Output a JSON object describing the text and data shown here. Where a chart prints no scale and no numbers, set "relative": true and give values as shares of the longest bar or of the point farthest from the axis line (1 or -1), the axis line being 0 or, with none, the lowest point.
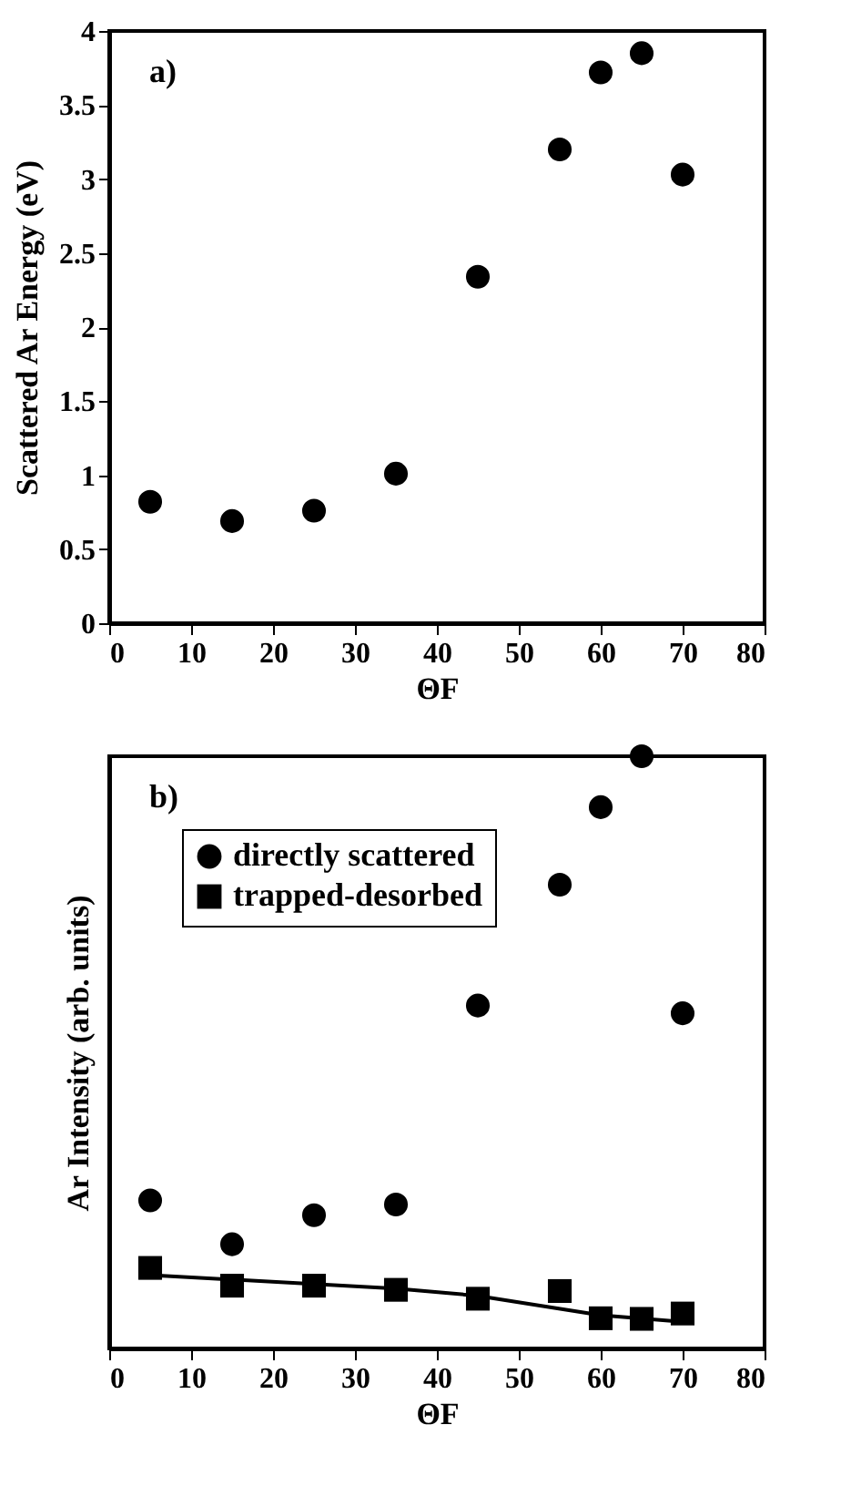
{
  "chart_data": [
    {
      "type": "scatter",
      "xlabel": "ΘF",
      "ylabel": "Scattered Ar Energy (eV)",
      "annotations": [
        "a)"
      ],
      "x": [
        5,
        15,
        25,
        35,
        45,
        55,
        60,
        65,
        70
      ],
      "values": [
        0.82,
        0.69,
        0.76,
        1.01,
        2.34,
        3.2,
        3.72,
        3.85,
        3.03
      ],
      "color": "#000000",
      "marker": "circle",
      "grid": false,
      "xlim": [
        0,
        80
      ],
      "xticks": [
        0,
        10,
        20,
        30,
        40,
        50,
        60,
        70,
        80
      ],
      "ylim": [
        0,
        4
      ],
      "yticks": [
        0,
        0.5,
        1,
        1.5,
        2,
        2.5,
        3,
        3.5,
        4
      ]
    },
    {
      "type": "scatter",
      "xlabel": "ΘF",
      "ylabel": "Ar Intensity (arb. units)",
      "annotations": [
        "b)"
      ],
      "relative": true,
      "legend": "top left",
      "grid": false,
      "tick_labels": "x",
      "x": [
        5,
        15,
        25,
        35,
        45,
        55,
        60,
        65,
        70
      ],
      "series": [
        {
          "name": "directly scattered",
          "color": "#000000",
          "marker": "circle",
          "values": [
            0.25,
            0.176,
            0.225,
            0.243,
            0.579,
            0.783,
            0.914,
            1,
            0.566
          ]
        },
        {
          "name": "trapped-desorbed",
          "color": "#000000",
          "marker": "square",
          "values": [
            0.136,
            0.106,
            0.106,
            0.099,
            0.084,
            0.097,
            0.051,
            0.05,
            0.059
          ]
        },
        {
          "type": "line",
          "color": "#000000",
          "line_style": "solid",
          "marker": "none",
          "x": [
            5,
            35,
            45,
            60,
            70
          ],
          "values": [
            0.124,
            0.101,
            0.089,
            0.056,
            0.045
          ]
        }
      ],
      "xlim": [
        0,
        80
      ],
      "xticks": [
        0,
        10,
        20,
        30,
        40,
        50,
        60,
        70,
        80
      ]
    }
  ]
}
